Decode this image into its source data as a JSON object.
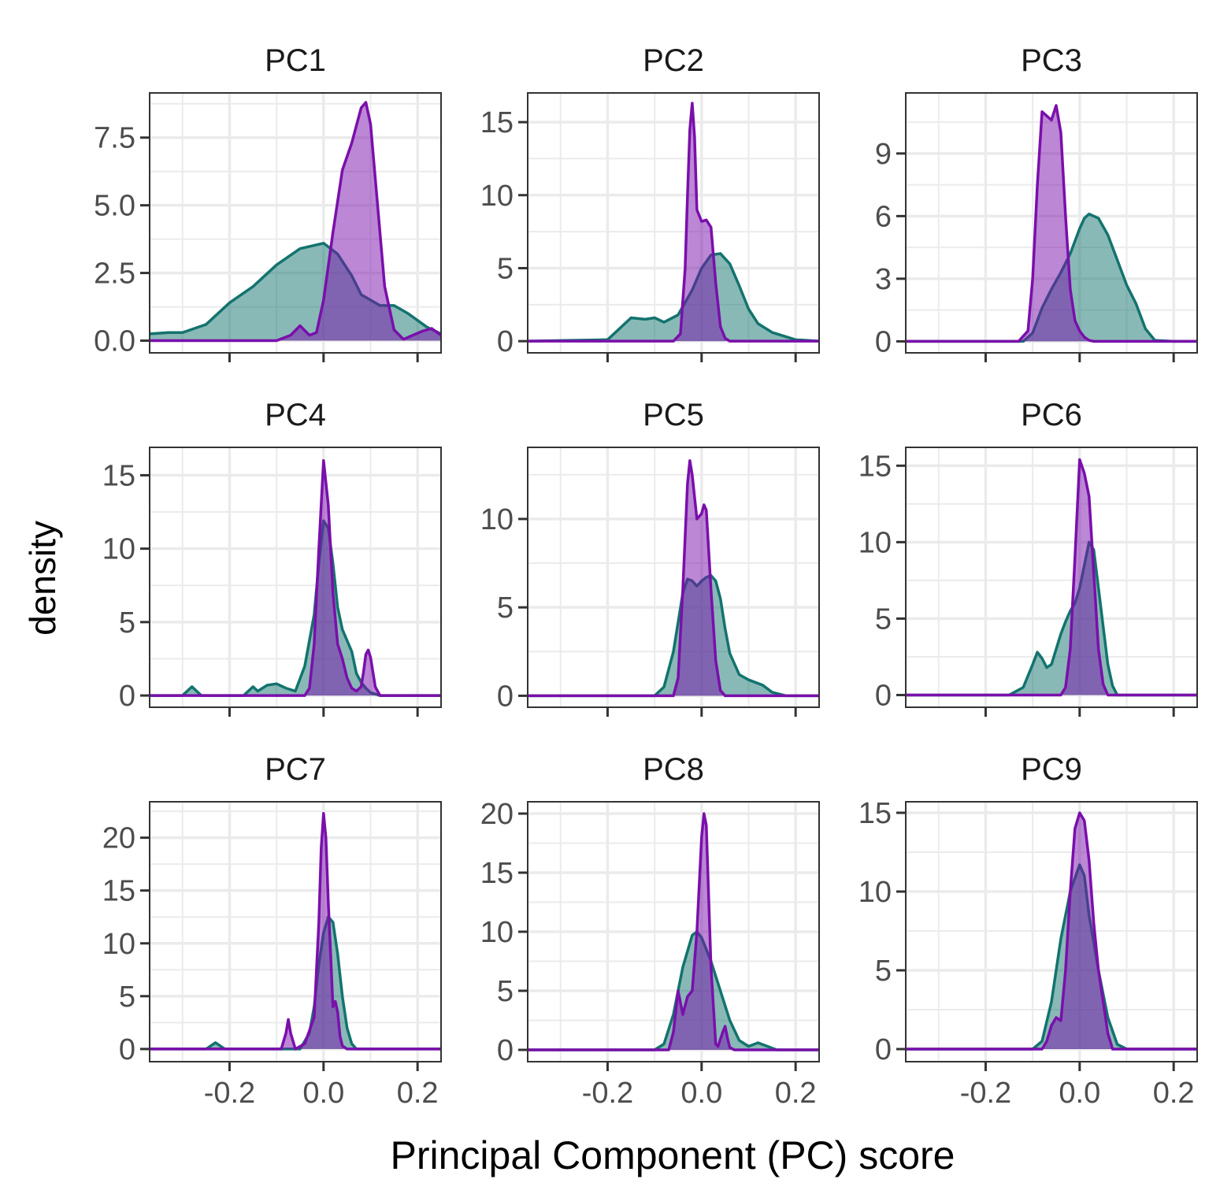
{
  "chart_data": {
    "type": "area",
    "xlabel": "Principal Component (PC) score",
    "ylabel": "density",
    "xlim": [
      -0.37,
      0.25
    ],
    "x_ticks": [
      -0.2,
      0.0,
      0.2
    ],
    "x_tick_labels": [
      "-0.2",
      "0.0",
      "0.2"
    ],
    "grid": true,
    "colors": {
      "teal": "#13736E",
      "purple": "#7A0FAB",
      "grid": "#EBEBEB",
      "border": "#333333"
    },
    "panels": [
      {
        "title": "PC1",
        "ylim": [
          -0.45,
          9.15
        ],
        "y_ticks": [
          0,
          2.5,
          5,
          7.5
        ],
        "y_tick_labels": [
          "0.0",
          "2.5",
          "5.0",
          "7.5"
        ],
        "series": [
          {
            "color": "teal",
            "x": [
              -0.37,
              -0.33,
              -0.3,
              -0.25,
              -0.2,
              -0.15,
              -0.1,
              -0.05,
              0.0,
              0.03,
              0.06,
              0.08,
              0.12,
              0.15,
              0.18,
              0.22,
              0.25
            ],
            "y": [
              0.25,
              0.3,
              0.3,
              0.6,
              1.4,
              2.0,
              2.8,
              3.4,
              3.6,
              3.2,
              2.4,
              1.7,
              1.3,
              1.3,
              1.0,
              0.5,
              0.25
            ]
          },
          {
            "color": "purple",
            "x": [
              -0.37,
              -0.1,
              -0.07,
              -0.05,
              -0.03,
              -0.015,
              0.0,
              0.02,
              0.04,
              0.06,
              0.08,
              0.09,
              0.1,
              0.11,
              0.13,
              0.15,
              0.17,
              0.19,
              0.21,
              0.23,
              0.25
            ],
            "y": [
              0,
              0,
              0.2,
              0.55,
              0.2,
              0.3,
              1.5,
              4.0,
              6.3,
              7.3,
              8.6,
              8.8,
              8.0,
              6.0,
              2.0,
              0.4,
              0.05,
              0.2,
              0.35,
              0.45,
              0.2
            ]
          }
        ]
      },
      {
        "title": "PC2",
        "ylim": [
          -0.8,
          17.0
        ],
        "y_ticks": [
          0,
          5,
          10,
          15
        ],
        "y_tick_labels": [
          "0",
          "5",
          "10",
          "15"
        ],
        "series": [
          {
            "color": "teal",
            "x": [
              -0.37,
              -0.2,
              -0.17,
              -0.15,
              -0.12,
              -0.1,
              -0.08,
              -0.05,
              -0.02,
              0.0,
              0.02,
              0.04,
              0.06,
              0.08,
              0.1,
              0.12,
              0.15,
              0.2,
              0.25
            ],
            "y": [
              0,
              0.1,
              1.0,
              1.6,
              1.5,
              1.6,
              1.3,
              1.8,
              3.5,
              5.0,
              5.9,
              6.0,
              5.3,
              3.8,
              2.2,
              1.2,
              0.6,
              0.1,
              0
            ]
          },
          {
            "color": "purple",
            "x": [
              -0.37,
              -0.06,
              -0.045,
              -0.035,
              -0.03,
              -0.025,
              -0.02,
              -0.015,
              -0.01,
              0.0,
              0.01,
              0.02,
              0.03,
              0.04,
              0.05,
              0.06,
              0.25
            ],
            "y": [
              0,
              0,
              0.5,
              5.0,
              10.0,
              14.5,
              16.3,
              14.0,
              9.0,
              8.2,
              8.3,
              7.8,
              4.0,
              1.0,
              0.2,
              0,
              0
            ]
          }
        ]
      },
      {
        "title": "PC3",
        "ylim": [
          -0.55,
          11.9
        ],
        "y_ticks": [
          0,
          3,
          6,
          9
        ],
        "y_tick_labels": [
          "0",
          "3",
          "6",
          "9"
        ],
        "series": [
          {
            "color": "teal",
            "x": [
              -0.37,
              -0.12,
              -0.1,
              -0.08,
              -0.06,
              -0.04,
              -0.02,
              0.0,
              0.01,
              0.02,
              0.04,
              0.06,
              0.08,
              0.1,
              0.12,
              0.14,
              0.16,
              0.2,
              0.25
            ],
            "y": [
              0,
              0,
              0.4,
              1.6,
              2.5,
              3.3,
              4.2,
              5.4,
              5.9,
              6.1,
              5.9,
              5.1,
              3.9,
              2.7,
              1.8,
              0.6,
              0.05,
              0,
              0
            ]
          },
          {
            "color": "purple",
            "x": [
              -0.37,
              -0.13,
              -0.11,
              -0.1,
              -0.09,
              -0.08,
              -0.07,
              -0.06,
              -0.05,
              -0.04,
              -0.03,
              -0.02,
              -0.01,
              0.0,
              0.01,
              0.02,
              0.03,
              0.25
            ],
            "y": [
              0,
              0,
              0.5,
              3.0,
              7.5,
              11.0,
              10.8,
              10.6,
              11.3,
              10.0,
              6.0,
              2.5,
              1.0,
              0.5,
              0.2,
              0.05,
              0,
              0
            ]
          }
        ]
      },
      {
        "title": "PC4",
        "ylim": [
          -0.8,
          16.9
        ],
        "y_ticks": [
          0,
          5,
          10,
          15
        ],
        "y_tick_labels": [
          "0",
          "5",
          "10",
          "15"
        ],
        "series": [
          {
            "color": "teal",
            "x": [
              -0.37,
              -0.3,
              -0.28,
              -0.26,
              -0.17,
              -0.15,
              -0.14,
              -0.12,
              -0.1,
              -0.08,
              -0.06,
              -0.04,
              -0.02,
              -0.01,
              0.0,
              0.01,
              0.02,
              0.03,
              0.04,
              0.06,
              0.07,
              0.08,
              0.09,
              0.1,
              0.12,
              0.25
            ],
            "y": [
              0,
              0,
              0.6,
              0,
              0,
              0.6,
              0.3,
              0.7,
              0.8,
              0.5,
              0.3,
              2.0,
              5.5,
              9.0,
              11.9,
              11.4,
              9.0,
              6.0,
              4.5,
              3.0,
              1.5,
              0.9,
              0.5,
              0.2,
              0,
              0
            ]
          },
          {
            "color": "purple",
            "x": [
              -0.37,
              -0.04,
              -0.03,
              -0.02,
              -0.01,
              0.0,
              0.01,
              0.02,
              0.03,
              0.04,
              0.05,
              0.06,
              0.07,
              0.08,
              0.085,
              0.09,
              0.095,
              0.1,
              0.11,
              0.12,
              0.25
            ],
            "y": [
              0,
              0,
              0.5,
              3.5,
              10.0,
              16.0,
              13.0,
              7.0,
              3.5,
              2.5,
              1.2,
              0.5,
              0.3,
              0.6,
              1.6,
              2.8,
              3.1,
              2.6,
              0.6,
              0,
              0
            ]
          }
        ]
      },
      {
        "title": "PC5",
        "ylim": [
          -0.65,
          14.05
        ],
        "y_ticks": [
          0,
          5,
          10
        ],
        "y_tick_labels": [
          "0",
          "5",
          "10"
        ],
        "series": [
          {
            "color": "teal",
            "x": [
              -0.37,
              -0.1,
              -0.08,
              -0.06,
              -0.04,
              -0.03,
              -0.02,
              -0.01,
              0.0,
              0.01,
              0.02,
              0.03,
              0.04,
              0.05,
              0.06,
              0.08,
              0.1,
              0.13,
              0.15,
              0.18,
              0.25
            ],
            "y": [
              0,
              0,
              0.5,
              2.5,
              5.8,
              6.6,
              6.5,
              6.2,
              6.5,
              6.7,
              6.8,
              6.5,
              5.5,
              3.8,
              2.4,
              1.2,
              0.9,
              0.6,
              0.2,
              0,
              0
            ]
          },
          {
            "color": "purple",
            "x": [
              -0.37,
              -0.06,
              -0.05,
              -0.04,
              -0.03,
              -0.025,
              -0.02,
              -0.01,
              0.0,
              0.005,
              0.01,
              0.02,
              0.03,
              0.04,
              0.05,
              0.25
            ],
            "y": [
              0,
              0,
              1.0,
              6.0,
              12.0,
              13.3,
              12.5,
              10.0,
              10.3,
              10.8,
              10.5,
              6.0,
              2.0,
              0.3,
              0,
              0
            ]
          }
        ]
      },
      {
        "title": "PC6",
        "ylim": [
          -0.8,
          16.2
        ],
        "y_ticks": [
          0,
          5,
          10,
          15
        ],
        "y_tick_labels": [
          "0",
          "5",
          "10",
          "15"
        ],
        "series": [
          {
            "color": "teal",
            "x": [
              -0.37,
              -0.15,
              -0.12,
              -0.1,
              -0.09,
              -0.08,
              -0.07,
              -0.06,
              -0.05,
              -0.04,
              -0.03,
              -0.02,
              -0.01,
              0.0,
              0.01,
              0.02,
              0.03,
              0.04,
              0.05,
              0.06,
              0.07,
              0.08,
              0.25
            ],
            "y": [
              0,
              0,
              0.5,
              2.0,
              2.8,
              2.4,
              1.8,
              2.0,
              3.0,
              4.0,
              4.8,
              5.5,
              6.0,
              7.0,
              8.5,
              10.0,
              9.5,
              7.0,
              4.5,
              2.0,
              0.6,
              0,
              0
            ]
          },
          {
            "color": "purple",
            "x": [
              -0.37,
              -0.04,
              -0.03,
              -0.02,
              -0.01,
              0.0,
              0.01,
              0.02,
              0.03,
              0.04,
              0.05,
              0.06,
              0.25
            ],
            "y": [
              0,
              0,
              0.5,
              3.0,
              9.0,
              15.4,
              14.5,
              13.0,
              8.0,
              3.0,
              0.7,
              0,
              0
            ]
          }
        ]
      },
      {
        "title": "PC7",
        "ylim": [
          -1.2,
          23.4
        ],
        "y_ticks": [
          0,
          5,
          10,
          15,
          20
        ],
        "y_tick_labels": [
          "0",
          "5",
          "10",
          "15",
          "20"
        ],
        "series": [
          {
            "color": "teal",
            "x": [
              -0.37,
              -0.25,
              -0.23,
              -0.21,
              -0.05,
              -0.03,
              -0.02,
              -0.01,
              0.0,
              0.01,
              0.02,
              0.03,
              0.04,
              0.05,
              0.06,
              0.07,
              0.25
            ],
            "y": [
              0,
              0,
              0.6,
              0,
              0,
              1.5,
              4.0,
              8.0,
              11.0,
              12.5,
              12.0,
              9.0,
              5.0,
              2.0,
              0.5,
              0,
              0
            ]
          },
          {
            "color": "purple",
            "x": [
              -0.37,
              -0.09,
              -0.08,
              -0.075,
              -0.07,
              -0.06,
              -0.04,
              -0.02,
              -0.01,
              -0.005,
              0.0,
              0.005,
              0.01,
              0.02,
              0.025,
              0.03,
              0.035,
              0.04,
              0.05,
              0.25
            ],
            "y": [
              0,
              0,
              1.5,
              2.8,
              1.5,
              0,
              0.5,
              3.0,
              12.0,
              19.0,
              22.3,
              20.0,
              14.0,
              4.0,
              4.5,
              3.5,
              1.2,
              0.3,
              0,
              0
            ]
          }
        ]
      },
      {
        "title": "PC8",
        "ylim": [
          -1.0,
          21.0
        ],
        "y_ticks": [
          0,
          5,
          10,
          15,
          20
        ],
        "y_tick_labels": [
          "0",
          "5",
          "10",
          "15",
          "20"
        ],
        "series": [
          {
            "color": "teal",
            "x": [
              -0.37,
              -0.1,
              -0.08,
              -0.06,
              -0.04,
              -0.02,
              -0.01,
              0.0,
              0.01,
              0.02,
              0.04,
              0.06,
              0.08,
              0.1,
              0.12,
              0.14,
              0.16,
              0.25
            ],
            "y": [
              0,
              0,
              0.5,
              3.0,
              7.0,
              9.7,
              10.0,
              9.5,
              8.5,
              7.5,
              5.0,
              2.5,
              0.8,
              0.3,
              0.6,
              0.3,
              0,
              0
            ]
          },
          {
            "color": "purple",
            "x": [
              -0.37,
              -0.07,
              -0.06,
              -0.05,
              -0.04,
              -0.03,
              -0.02,
              -0.01,
              0.0,
              0.005,
              0.01,
              0.02,
              0.03,
              0.035,
              0.045,
              0.05,
              0.055,
              0.06,
              0.07,
              0.25
            ],
            "y": [
              0,
              0,
              1.5,
              5.0,
              3.0,
              4.5,
              5.0,
              10.0,
              18.0,
              20.0,
              19.0,
              7.0,
              0.5,
              0.3,
              1.5,
              2.0,
              1.0,
              0.2,
              0,
              0
            ]
          }
        ]
      },
      {
        "title": "PC9",
        "ylim": [
          -0.8,
          15.7
        ],
        "y_ticks": [
          0,
          5,
          10,
          15
        ],
        "y_tick_labels": [
          "0",
          "5",
          "10",
          "15"
        ],
        "series": [
          {
            "color": "teal",
            "x": [
              -0.37,
              -0.1,
              -0.08,
              -0.06,
              -0.04,
              -0.02,
              0.0,
              0.01,
              0.02,
              0.04,
              0.06,
              0.08,
              0.1,
              0.25
            ],
            "y": [
              0,
              0,
              0.5,
              3.0,
              7.0,
              10.0,
              11.7,
              11.0,
              8.5,
              5.0,
              2.0,
              0.3,
              0,
              0
            ]
          },
          {
            "color": "purple",
            "x": [
              -0.37,
              -0.08,
              -0.07,
              -0.06,
              -0.05,
              -0.04,
              -0.03,
              -0.02,
              -0.01,
              0.0,
              0.01,
              0.02,
              0.03,
              0.04,
              0.05,
              0.06,
              0.07,
              0.25
            ],
            "y": [
              0,
              0,
              0.5,
              1.5,
              2.0,
              1.8,
              5.0,
              10.0,
              14.0,
              15.0,
              14.5,
              12.0,
              8.0,
              5.0,
              3.0,
              1.0,
              0,
              0
            ]
          }
        ]
      }
    ]
  }
}
